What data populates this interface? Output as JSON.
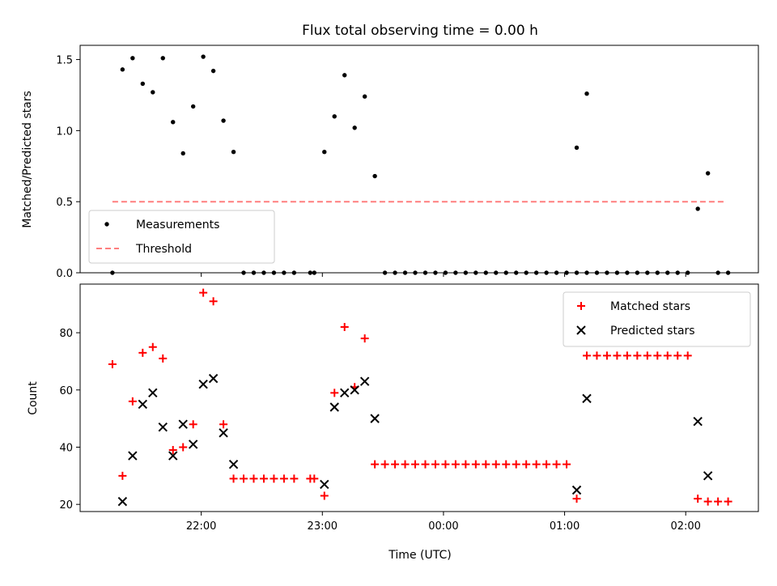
{
  "title": "Flux total observing time = 0.00 h",
  "colors": {
    "black": "#000000",
    "matched": "#ff0000",
    "threshold": "#ff7f7f",
    "legend_border": "#cccccc"
  },
  "chart_data": [
    {
      "type": "scatter",
      "title": "Flux total observing time = 0.00 h",
      "xlabel": "",
      "ylabel": "Matched/Predicted stars",
      "x_unit": "minutes after 00:00 UTC (negative = previous day)",
      "xlim": [
        -180,
        156
      ],
      "ylim": [
        0,
        1.6
      ],
      "yticks": [
        0.0,
        0.5,
        1.0,
        1.5
      ],
      "ytick_labels": [
        "0.0",
        "0.5",
        "1.0",
        "1.5"
      ],
      "grid": false,
      "legend_position": "lower-left",
      "series": [
        {
          "name": "Measurements",
          "marker": "dot",
          "color": "#000000",
          "points": [
            [
              -164,
              0.0
            ],
            [
              -159,
              1.43
            ],
            [
              -154,
              1.51
            ],
            [
              -149,
              1.33
            ],
            [
              -144,
              1.27
            ],
            [
              -139,
              1.51
            ],
            [
              -134,
              1.06
            ],
            [
              -129,
              0.84
            ],
            [
              -124,
              1.17
            ],
            [
              -119,
              1.52
            ],
            [
              -114,
              1.42
            ],
            [
              -109,
              1.07
            ],
            [
              -104,
              0.85
            ],
            [
              -99,
              0.0
            ],
            [
              -94,
              0.0
            ],
            [
              -89,
              0.0
            ],
            [
              -84,
              0.0
            ],
            [
              -79,
              0.0
            ],
            [
              -74,
              0.0
            ],
            [
              -66,
              0.0
            ],
            [
              -64,
              0.0
            ],
            [
              -59,
              0.85
            ],
            [
              -54,
              1.1
            ],
            [
              -49,
              1.39
            ],
            [
              -44,
              1.02
            ],
            [
              -39,
              1.24
            ],
            [
              -34,
              0.68
            ],
            [
              -29,
              0.0
            ],
            [
              -24,
              0.0
            ],
            [
              -19,
              0.0
            ],
            [
              -14,
              0.0
            ],
            [
              -9,
              0.0
            ],
            [
              -4,
              0.0
            ],
            [
              1,
              0.0
            ],
            [
              6,
              0.0
            ],
            [
              11,
              0.0
            ],
            [
              16,
              0.0
            ],
            [
              21,
              0.0
            ],
            [
              26,
              0.0
            ],
            [
              31,
              0.0
            ],
            [
              36,
              0.0
            ],
            [
              41,
              0.0
            ],
            [
              46,
              0.0
            ],
            [
              51,
              0.0
            ],
            [
              56,
              0.0
            ],
            [
              61,
              0.0
            ],
            [
              66,
              0.0
            ],
            [
              71,
              0.0
            ],
            [
              66,
              0.88
            ],
            [
              71,
              1.26
            ],
            [
              76,
              0.0
            ],
            [
              81,
              0.0
            ],
            [
              86,
              0.0
            ],
            [
              91,
              0.0
            ],
            [
              96,
              0.0
            ],
            [
              101,
              0.0
            ],
            [
              106,
              0.0
            ],
            [
              111,
              0.0
            ],
            [
              116,
              0.0
            ],
            [
              121,
              0.0
            ],
            [
              126,
              0.45
            ],
            [
              131,
              0.7
            ],
            [
              136,
              0.0
            ],
            [
              141,
              0.0
            ]
          ]
        },
        {
          "name": "Threshold",
          "marker": "dashed-line",
          "color": "#ff7f7f",
          "points": [
            [
              -164,
              0.5
            ],
            [
              139,
              0.5
            ]
          ]
        }
      ]
    },
    {
      "type": "scatter",
      "xlabel": "Time (UTC)",
      "ylabel": "Count",
      "x_unit": "minutes after 00:00 UTC (negative = previous day)",
      "xlim": [
        -180,
        156
      ],
      "ylim": [
        17.5,
        97
      ],
      "yticks": [
        20,
        40,
        60,
        80
      ],
      "ytick_labels": [
        "20",
        "40",
        "60",
        "80"
      ],
      "xticks": [
        -120,
        -60,
        0,
        60,
        120
      ],
      "xtick_labels": [
        "22:00",
        "23:00",
        "00:00",
        "01:00",
        "02:00"
      ],
      "grid": false,
      "legend_position": "upper-right",
      "series": [
        {
          "name": "Matched stars",
          "marker": "plus",
          "color": "#ff0000",
          "points": [
            [
              -164,
              69
            ],
            [
              -159,
              30
            ],
            [
              -154,
              56
            ],
            [
              -149,
              73
            ],
            [
              -144,
              75
            ],
            [
              -139,
              71
            ],
            [
              -134,
              39
            ],
            [
              -129,
              40
            ],
            [
              -124,
              48
            ],
            [
              -119,
              94
            ],
            [
              -114,
              91
            ],
            [
              -109,
              48
            ],
            [
              -104,
              29
            ],
            [
              -99,
              29
            ],
            [
              -94,
              29
            ],
            [
              -89,
              29
            ],
            [
              -84,
              29
            ],
            [
              -79,
              29
            ],
            [
              -74,
              29
            ],
            [
              -66,
              29
            ],
            [
              -64,
              29
            ],
            [
              -59,
              23
            ],
            [
              -54,
              59
            ],
            [
              -49,
              82
            ],
            [
              -44,
              61
            ],
            [
              -39,
              78
            ],
            [
              -34,
              34
            ],
            [
              -29,
              34
            ],
            [
              -24,
              34
            ],
            [
              -19,
              34
            ],
            [
              -14,
              34
            ],
            [
              -9,
              34
            ],
            [
              -4,
              34
            ],
            [
              1,
              34
            ],
            [
              6,
              34
            ],
            [
              11,
              34
            ],
            [
              16,
              34
            ],
            [
              21,
              34
            ],
            [
              26,
              34
            ],
            [
              31,
              34
            ],
            [
              36,
              34
            ],
            [
              41,
              34
            ],
            [
              46,
              34
            ],
            [
              51,
              34
            ],
            [
              56,
              34
            ],
            [
              61,
              34
            ],
            [
              66,
              22
            ],
            [
              71,
              72
            ],
            [
              76,
              72
            ],
            [
              81,
              72
            ],
            [
              86,
              72
            ],
            [
              91,
              72
            ],
            [
              96,
              72
            ],
            [
              101,
              72
            ],
            [
              106,
              72
            ],
            [
              111,
              72
            ],
            [
              116,
              72
            ],
            [
              121,
              72
            ],
            [
              126,
              22
            ],
            [
              131,
              21
            ],
            [
              136,
              21
            ],
            [
              141,
              21
            ]
          ]
        },
        {
          "name": "Predicted stars",
          "marker": "x",
          "color": "#000000",
          "points": [
            [
              -159,
              21
            ],
            [
              -154,
              37
            ],
            [
              -149,
              55
            ],
            [
              -144,
              59
            ],
            [
              -139,
              47
            ],
            [
              -134,
              37
            ],
            [
              -129,
              48
            ],
            [
              -124,
              41
            ],
            [
              -119,
              62
            ],
            [
              -114,
              64
            ],
            [
              -109,
              45
            ],
            [
              -104,
              34
            ],
            [
              -59,
              27
            ],
            [
              -54,
              54
            ],
            [
              -49,
              59
            ],
            [
              -44,
              60
            ],
            [
              -39,
              63
            ],
            [
              -34,
              50
            ],
            [
              66,
              25
            ],
            [
              71,
              57
            ],
            [
              126,
              49
            ],
            [
              131,
              30
            ]
          ]
        }
      ]
    }
  ]
}
